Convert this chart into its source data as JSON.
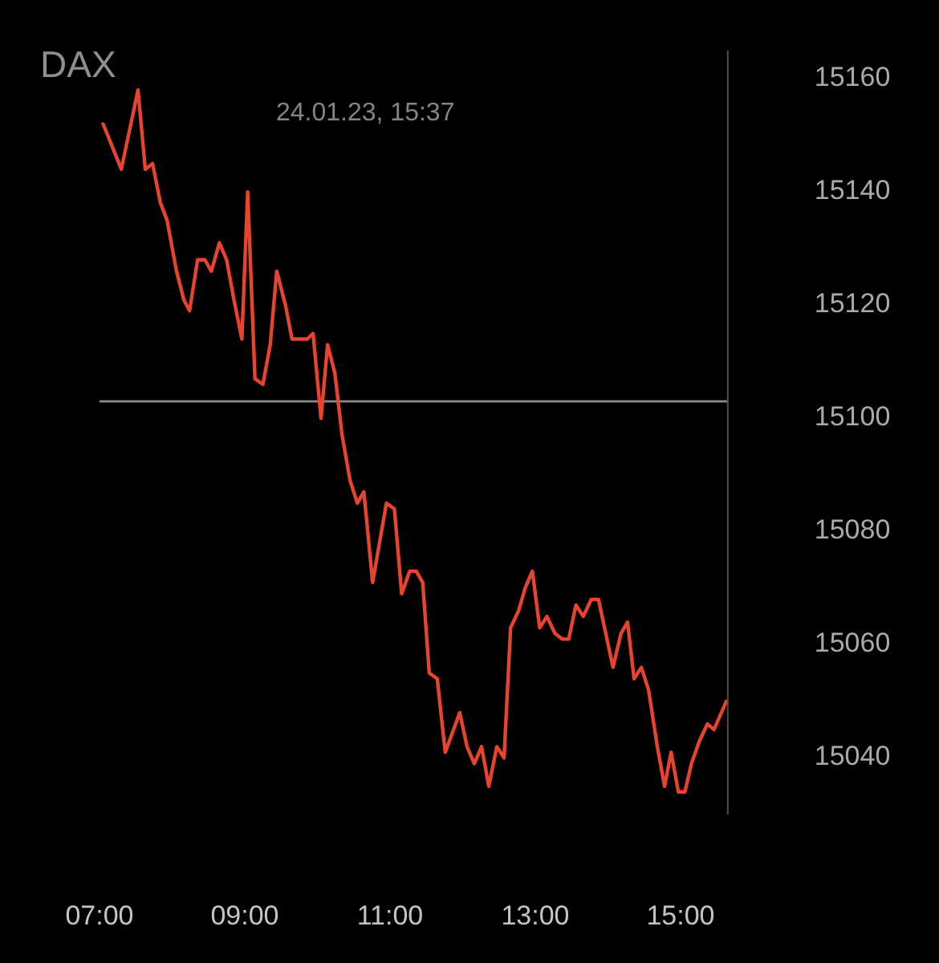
{
  "chart_data": {
    "type": "line",
    "title": "DAX",
    "subtitle": "24.01.23, 15:37",
    "x": [
      7.05,
      7.3,
      7.53,
      7.63,
      7.73,
      7.84,
      7.93,
      8.06,
      8.16,
      8.24,
      8.35,
      8.45,
      8.54,
      8.65,
      8.75,
      8.85,
      8.96,
      9.04,
      9.14,
      9.25,
      9.35,
      9.44,
      9.56,
      9.65,
      9.76,
      9.86,
      9.94,
      10.05,
      10.14,
      10.24,
      10.34,
      10.45,
      10.55,
      10.64,
      10.76,
      10.95,
      11.06,
      11.16,
      11.27,
      11.36,
      11.45,
      11.54,
      11.65,
      11.76,
      11.96,
      12.06,
      12.16,
      12.26,
      12.36,
      12.47,
      12.57,
      12.66,
      12.77,
      12.86,
      12.96,
      13.06,
      13.16,
      13.27,
      13.37,
      13.46,
      13.56,
      13.66,
      13.77,
      13.87,
      13.97,
      14.07,
      14.18,
      14.27,
      14.36,
      14.46,
      14.56,
      14.68,
      14.78,
      14.87,
      14.97,
      15.06,
      15.15,
      15.26,
      15.37,
      15.46,
      15.63
    ],
    "series": [
      {
        "color": "#e8432e",
        "values": [
          15152,
          15144,
          15158,
          15144,
          15145,
          15138,
          15135,
          15126,
          15121,
          15119,
          15128,
          15128,
          15126,
          15131,
          15128,
          15121,
          15114,
          15140,
          15107,
          15106,
          15113,
          15126,
          15120,
          15114,
          15114,
          15114,
          15115,
          15100,
          15113,
          15108,
          15097,
          15089,
          15085,
          15087,
          15071,
          15085,
          15084,
          15069,
          15073,
          15073,
          15071,
          15055,
          15054,
          15041,
          15048,
          15042,
          15039,
          15042,
          15035,
          15042,
          15040,
          15063,
          15066,
          15070,
          15073,
          15063,
          15065,
          15062,
          15061,
          15061,
          15067,
          15065,
          15068,
          15068,
          15062,
          15056,
          15062,
          15064,
          15054,
          15056,
          15052,
          15042,
          15035,
          15041,
          15034,
          15034,
          15039,
          15043,
          15046,
          15045,
          15050
        ]
      }
    ],
    "xlim": [
      7,
      15.65
    ],
    "xticks": [
      {
        "value": 7,
        "label": "07:00"
      },
      {
        "value": 9,
        "label": "09:00"
      },
      {
        "value": 11,
        "label": "11:00"
      },
      {
        "value": 13,
        "label": "13:00"
      },
      {
        "value": 15,
        "label": "15:00"
      }
    ],
    "ylim": [
      15030,
      15165
    ],
    "yticks": [
      15040,
      15060,
      15080,
      15100,
      15120,
      15140,
      15160
    ],
    "ref_lines": [
      {
        "axis": "y",
        "value": 15103,
        "color": "#8c8c8c"
      }
    ],
    "line_style": "solid"
  }
}
